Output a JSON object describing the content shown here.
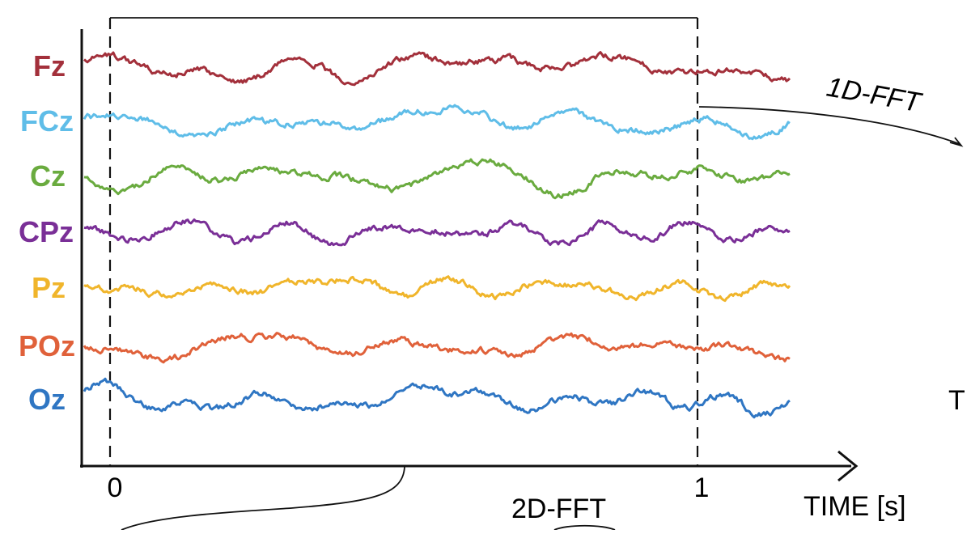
{
  "figure": {
    "channels": [
      {
        "label": "Fz",
        "color": "#a3303b"
      },
      {
        "label": "FCz",
        "color": "#5fbde8"
      },
      {
        "label": "Cz",
        "color": "#6aab3f"
      },
      {
        "label": "CPz",
        "color": "#7a2f97"
      },
      {
        "label": "Pz",
        "color": "#f0b52b"
      },
      {
        "label": "POz",
        "color": "#e0613a"
      },
      {
        "label": "Oz",
        "color": "#2f76c3"
      }
    ],
    "x_axis": {
      "ticks": [
        "0",
        "1"
      ],
      "label": "TIME [s]"
    },
    "annotations": {
      "fft_1d": "1D-FFT",
      "fft_2d": "2D-FFT",
      "cut_text": "T"
    }
  }
}
